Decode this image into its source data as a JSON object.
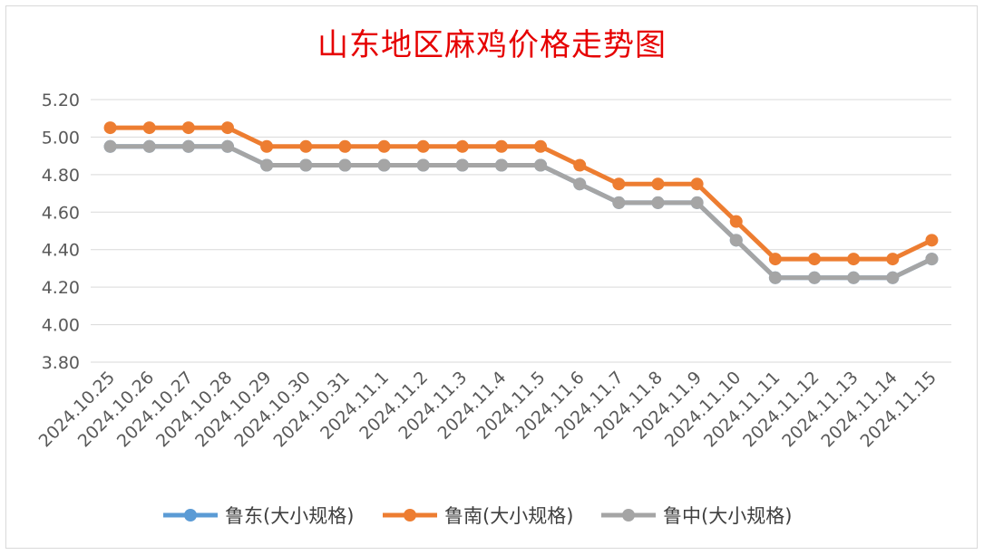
{
  "chart_data": {
    "type": "line",
    "title": "山东地区麻鸡价格走势图",
    "categories": [
      "2024.10.25",
      "2024.10.26",
      "2024.10.27",
      "2024.10.28",
      "2024.10.29",
      "2024.10.30",
      "2024.10.31",
      "2024.11.1",
      "2024.11.2",
      "2024.11.3",
      "2024.11.4",
      "2024.11.5",
      "2024.11.6",
      "2024.11.7",
      "2024.11.8",
      "2024.11.9",
      "2024.11.10",
      "2024.11.11",
      "2024.11.12",
      "2024.11.13",
      "2024.11.14",
      "2024.11.15"
    ],
    "y_ticks": [
      "3.80",
      "4.00",
      "4.20",
      "4.40",
      "4.60",
      "4.80",
      "5.00",
      "5.20"
    ],
    "ylim": [
      3.8,
      5.2
    ],
    "grid": true,
    "legend_position": "bottom",
    "series": [
      {
        "name": "鲁东(大小规格)",
        "color": "#5b9bd5",
        "values": [
          4.95,
          4.95,
          4.95,
          4.95,
          4.85,
          4.85,
          4.85,
          4.85,
          4.85,
          4.85,
          4.85,
          4.85,
          4.75,
          4.65,
          4.65,
          4.65,
          4.45,
          4.25,
          4.25,
          4.25,
          4.25,
          4.35
        ]
      },
      {
        "name": "鲁南(大小规格)",
        "color": "#ed7d31",
        "values": [
          5.05,
          5.05,
          5.05,
          5.05,
          4.95,
          4.95,
          4.95,
          4.95,
          4.95,
          4.95,
          4.95,
          4.95,
          4.85,
          4.75,
          4.75,
          4.75,
          4.55,
          4.35,
          4.35,
          4.35,
          4.35,
          4.45
        ]
      },
      {
        "name": "鲁中(大小规格)",
        "color": "#a5a5a5",
        "values": [
          4.95,
          4.95,
          4.95,
          4.95,
          4.85,
          4.85,
          4.85,
          4.85,
          4.85,
          4.85,
          4.85,
          4.85,
          4.75,
          4.65,
          4.65,
          4.65,
          4.45,
          4.25,
          4.25,
          4.25,
          4.25,
          4.35
        ]
      }
    ]
  }
}
